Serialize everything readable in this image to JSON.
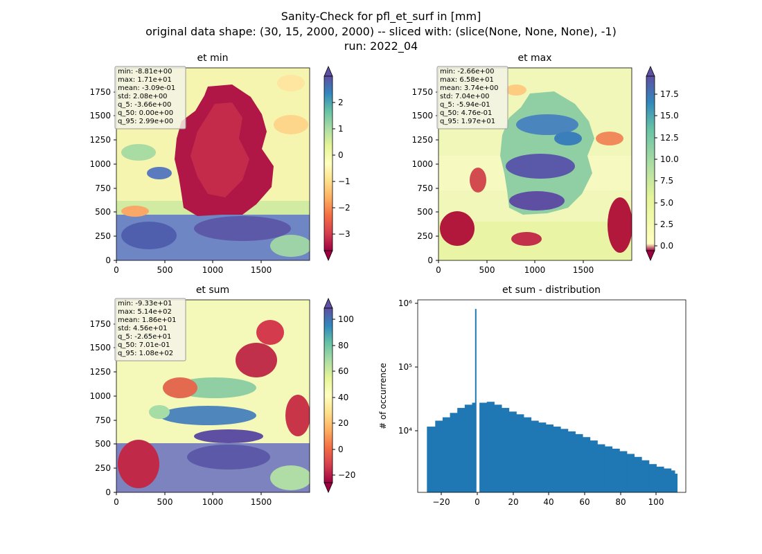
{
  "suptitle": {
    "line1": "Sanity-Check for pfl_et_surf in [mm]",
    "line2": "original data shape: (30, 15, 2000, 2000) -- sliced with: (slice(None, None, None), -1)",
    "line3": "run: 2022_04"
  },
  "chart_data": [
    {
      "type": "heatmap",
      "title": "et min",
      "xlim": [
        0,
        2000
      ],
      "ylim": [
        0,
        2000
      ],
      "x_ticks": [
        "0",
        "500",
        "1000",
        "1500"
      ],
      "y_ticks": [
        "0",
        "250",
        "500",
        "750",
        "1000",
        "1250",
        "1500",
        "1750"
      ],
      "colormap": "Spectral",
      "colorbar": {
        "range": [
          -3.66,
          2.99
        ],
        "ticks": [
          "−3",
          "−2",
          "−1",
          "0",
          "1",
          "2"
        ],
        "extend": "both"
      },
      "stats": [
        "min: -8.81e+00",
        "max: 1.71e+01",
        "mean: -3.09e-01",
        "std: 2.08e+00",
        "q_5: -3.66e+00",
        "q_50: 0.00e+00",
        "q_95: 2.99e+00"
      ]
    },
    {
      "type": "heatmap",
      "title": "et max",
      "xlim": [
        0,
        2000
      ],
      "ylim": [
        0,
        2000
      ],
      "x_ticks": [
        "0",
        "500",
        "1000",
        "1500"
      ],
      "y_ticks": [
        "0",
        "250",
        "500",
        "750",
        "1000",
        "1250",
        "1500",
        "1750"
      ],
      "colormap": "Spectral",
      "colorbar": {
        "range": [
          -0.594,
          19.7
        ],
        "ticks": [
          "0.0",
          "2.5",
          "5.0",
          "7.5",
          "10.0",
          "12.5",
          "15.0",
          "17.5"
        ],
        "extend": "both"
      },
      "stats": [
        "min: -2.66e+00",
        "max: 6.58e+01",
        "mean: 3.74e+00",
        "std: 7.04e+00",
        "q_5: -5.94e-01",
        "q_50: 4.76e-01",
        "q_95: 1.97e+01"
      ]
    },
    {
      "type": "heatmap",
      "title": "et sum",
      "xlim": [
        0,
        2000
      ],
      "ylim": [
        0,
        2000
      ],
      "x_ticks": [
        "0",
        "500",
        "1000",
        "1500"
      ],
      "y_ticks": [
        "0",
        "250",
        "500",
        "750",
        "1000",
        "1250",
        "1500",
        "1750"
      ],
      "colormap": "Spectral",
      "colorbar": {
        "range": [
          -26.5,
          108
        ],
        "ticks": [
          "−20",
          "0",
          "20",
          "40",
          "60",
          "80",
          "100"
        ],
        "extend": "both"
      },
      "stats": [
        "min: -9.33e+01",
        "max: 5.14e+02",
        "mean: 1.86e+01",
        "std: 4.56e+01",
        "q_5: -2.65e+01",
        "q_50: 7.01e-01",
        "q_95: 1.08e+02"
      ]
    },
    {
      "type": "bar",
      "title": "et sum - distribution",
      "xlabel": "",
      "ylabel": "# of occurrence",
      "xlim": [
        -31.5,
        114
      ],
      "ylim": [
        1300,
        1100000
      ],
      "yscale": "log",
      "x_ticks": [
        "−20",
        "0",
        "20",
        "40",
        "60",
        "80",
        "100"
      ],
      "y_ticks": [
        "10⁴",
        "10⁵",
        "10⁶"
      ],
      "bar_color": "#1f77b4",
      "bins": {
        "x": [
          -26.5,
          -22.0,
          -18.0,
          -14.0,
          -10.0,
          -6.0,
          -2.0,
          0.0,
          2.0,
          6.0,
          10.0,
          14.0,
          18.0,
          22.0,
          26.0,
          30.0,
          34.0,
          38.0,
          42.0,
          46.0,
          50.0,
          54.0,
          58.0,
          62.0,
          66.0,
          70.0,
          74.0,
          78.0,
          82.0,
          86.0,
          90.0,
          94.0,
          98.0,
          102.0,
          106.0,
          108.0
        ],
        "counts": [
          13000,
          16000,
          18000,
          21000,
          25000,
          28000,
          30000,
          800000,
          30000,
          31000,
          28000,
          25000,
          22000,
          20000,
          18000,
          16000,
          15000,
          14000,
          13000,
          12000,
          11000,
          10000,
          9000,
          8000,
          7000,
          6500,
          6000,
          5500,
          5000,
          4500,
          4000,
          3500,
          3200,
          3000,
          2800,
          2500
        ]
      }
    }
  ]
}
